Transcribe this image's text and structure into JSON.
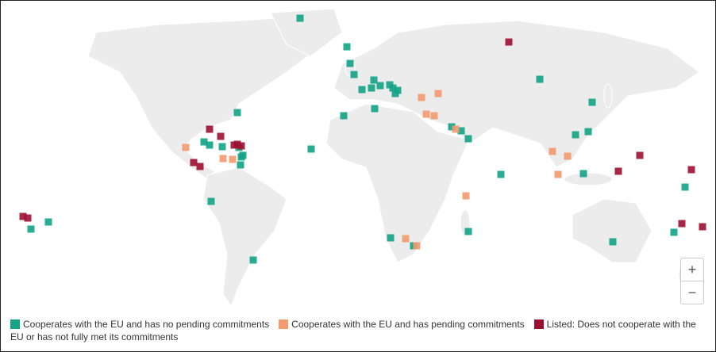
{
  "legend": {
    "items": [
      {
        "label": "Cooperates with the EU and has no pending commitments",
        "color": "#13a386"
      },
      {
        "label": "Cooperates with the EU and has pending commitments",
        "color": "#f39a6e"
      },
      {
        "label": "Listed: Does not cooperate with the EU or has not fully met its commitments",
        "color": "#9c0f32"
      }
    ]
  },
  "controls": {
    "zoom_in": "+",
    "zoom_out": "−"
  }
}
